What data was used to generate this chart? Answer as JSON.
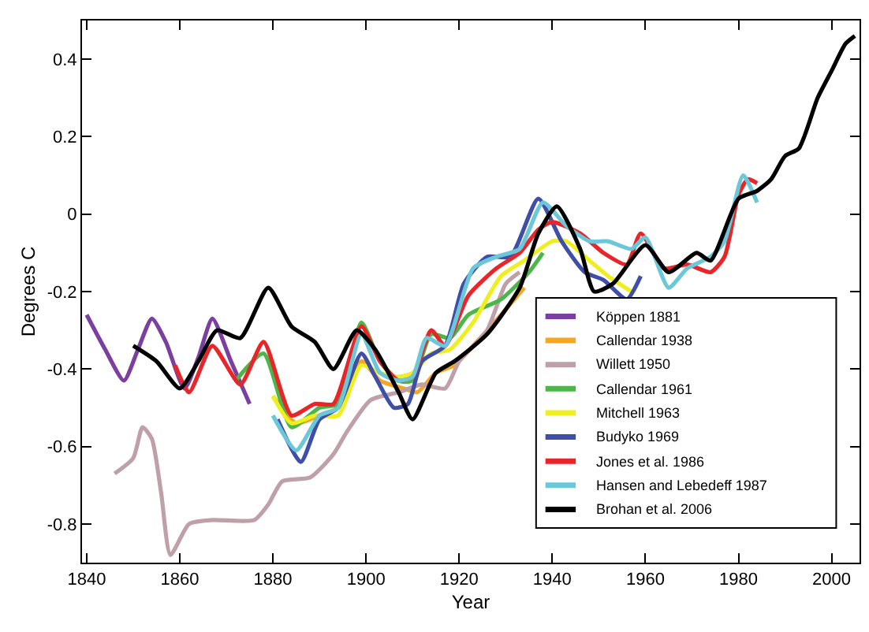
{
  "chart_data": {
    "type": "line",
    "xlabel": "Year",
    "ylabel": "Degrees C",
    "xlim": [
      1839,
      2006
    ],
    "xticks": [
      1840,
      1860,
      1880,
      1900,
      1920,
      1940,
      1960,
      1980,
      2000
    ],
    "ylim": [
      -0.9,
      0.5
    ],
    "yticks": [
      -0.8,
      -0.6,
      -0.4,
      -0.2,
      0,
      0.2,
      0.4
    ],
    "grid": false,
    "legend": "bottom right",
    "line_style": "solid",
    "marker": "none",
    "series": [
      {
        "name": "Köppen 1881",
        "color": "#7b3fa0",
        "x": [
          1840,
          1844,
          1848,
          1851,
          1854,
          1857,
          1861,
          1864,
          1867,
          1871,
          1875
        ],
        "values": [
          -0.26,
          -0.35,
          -0.43,
          -0.35,
          -0.27,
          -0.33,
          -0.45,
          -0.37,
          -0.27,
          -0.38,
          -0.49
        ]
      },
      {
        "name": "Callendar 1938",
        "color": "#f5a623",
        "x": [
          1880,
          1885,
          1890,
          1894,
          1899,
          1903,
          1908,
          1911,
          1915,
          1919,
          1923,
          1929,
          1934
        ],
        "values": [
          -0.47,
          -0.54,
          -0.52,
          -0.5,
          -0.38,
          -0.43,
          -0.45,
          -0.46,
          -0.41,
          -0.39,
          -0.34,
          -0.26,
          -0.19
        ]
      },
      {
        "name": "Willett 1950",
        "color": "#c0a0a8",
        "x": [
          1846,
          1850,
          1852,
          1854,
          1856,
          1858,
          1862,
          1867,
          1876,
          1879,
          1882,
          1888,
          1893,
          1896,
          1901,
          1907,
          1912,
          1917,
          1920,
          1926,
          1930,
          1933
        ],
        "values": [
          -0.67,
          -0.63,
          -0.55,
          -0.58,
          -0.72,
          -0.88,
          -0.8,
          -0.79,
          -0.79,
          -0.75,
          -0.69,
          -0.68,
          -0.62,
          -0.56,
          -0.48,
          -0.46,
          -0.44,
          -0.45,
          -0.38,
          -0.3,
          -0.18,
          -0.15
        ]
      },
      {
        "name": "Callendar 1961",
        "color": "#4cb648",
        "x": [
          1872,
          1878,
          1884,
          1890,
          1894,
          1899,
          1903,
          1907,
          1910,
          1914,
          1918,
          1922,
          1929,
          1935,
          1938
        ],
        "values": [
          -0.43,
          -0.36,
          -0.55,
          -0.5,
          -0.49,
          -0.28,
          -0.38,
          -0.43,
          -0.43,
          -0.31,
          -0.32,
          -0.26,
          -0.22,
          -0.15,
          -0.1
        ]
      },
      {
        "name": "Mitchell 1963",
        "color": "#eeee20",
        "x": [
          1880,
          1884,
          1889,
          1894,
          1899,
          1903,
          1907,
          1910,
          1914,
          1918,
          1923,
          1929,
          1934,
          1940,
          1943,
          1948,
          1952,
          1957
        ],
        "values": [
          -0.47,
          -0.54,
          -0.52,
          -0.52,
          -0.39,
          -0.41,
          -0.42,
          -0.41,
          -0.36,
          -0.35,
          -0.28,
          -0.16,
          -0.12,
          -0.07,
          -0.07,
          -0.12,
          -0.16,
          -0.2
        ]
      },
      {
        "name": "Budyko 1969",
        "color": "#3f4fa8",
        "x": [
          1881,
          1886,
          1890,
          1894,
          1899,
          1902,
          1906,
          1909,
          1912,
          1917,
          1921,
          1926,
          1931,
          1937,
          1942,
          1947,
          1951,
          1956,
          1959
        ],
        "values": [
          -0.53,
          -0.64,
          -0.53,
          -0.5,
          -0.36,
          -0.42,
          -0.5,
          -0.49,
          -0.38,
          -0.34,
          -0.18,
          -0.11,
          -0.11,
          0.04,
          -0.07,
          -0.15,
          -0.17,
          -0.22,
          -0.16
        ]
      },
      {
        "name": "Jones et al. 1986",
        "color": "#e8262a",
        "x": [
          1859,
          1862,
          1867,
          1873,
          1878,
          1884,
          1889,
          1893,
          1899,
          1903,
          1907,
          1910,
          1914,
          1917,
          1922,
          1928,
          1933,
          1937,
          1940,
          1946,
          1951,
          1956,
          1959,
          1964,
          1969,
          1974,
          1977,
          1980,
          1982,
          1984
        ],
        "values": [
          -0.39,
          -0.46,
          -0.34,
          -0.44,
          -0.33,
          -0.52,
          -0.49,
          -0.49,
          -0.29,
          -0.38,
          -0.43,
          -0.42,
          -0.3,
          -0.34,
          -0.21,
          -0.14,
          -0.1,
          -0.04,
          -0.02,
          -0.05,
          -0.1,
          -0.13,
          -0.05,
          -0.14,
          -0.13,
          -0.15,
          -0.11,
          0.05,
          0.09,
          0.08
        ]
      },
      {
        "name": "Hansen and Lebedeff 1987",
        "color": "#6cc8d8",
        "x": [
          1880,
          1885,
          1890,
          1894,
          1899,
          1903,
          1907,
          1910,
          1913,
          1917,
          1923,
          1928,
          1933,
          1938,
          1943,
          1948,
          1952,
          1957,
          1960,
          1965,
          1969,
          1974,
          1977,
          1981,
          1984
        ],
        "values": [
          -0.52,
          -0.61,
          -0.52,
          -0.5,
          -0.31,
          -0.41,
          -0.43,
          -0.42,
          -0.32,
          -0.34,
          -0.14,
          -0.11,
          -0.09,
          0.03,
          -0.03,
          -0.07,
          -0.07,
          -0.09,
          -0.06,
          -0.19,
          -0.14,
          -0.11,
          -0.07,
          0.1,
          0.03
        ]
      },
      {
        "name": "Brohan et al. 2006",
        "color": "#000000",
        "x": [
          1850,
          1855,
          1860,
          1864,
          1868,
          1873,
          1879,
          1884,
          1889,
          1893,
          1898,
          1902,
          1907,
          1910,
          1915,
          1919,
          1926,
          1933,
          1937,
          1941,
          1946,
          1949,
          1953,
          1960,
          1965,
          1971,
          1974,
          1980,
          1984,
          1987,
          1990,
          1993,
          1997,
          2000,
          2003,
          2005
        ],
        "values": [
          -0.34,
          -0.38,
          -0.45,
          -0.38,
          -0.3,
          -0.32,
          -0.19,
          -0.29,
          -0.33,
          -0.4,
          -0.3,
          -0.35,
          -0.46,
          -0.53,
          -0.41,
          -0.38,
          -0.31,
          -0.19,
          -0.05,
          0.02,
          -0.09,
          -0.2,
          -0.18,
          -0.08,
          -0.15,
          -0.1,
          -0.12,
          0.04,
          0.06,
          0.09,
          0.15,
          0.17,
          0.3,
          0.37,
          0.44,
          0.46
        ]
      }
    ]
  }
}
